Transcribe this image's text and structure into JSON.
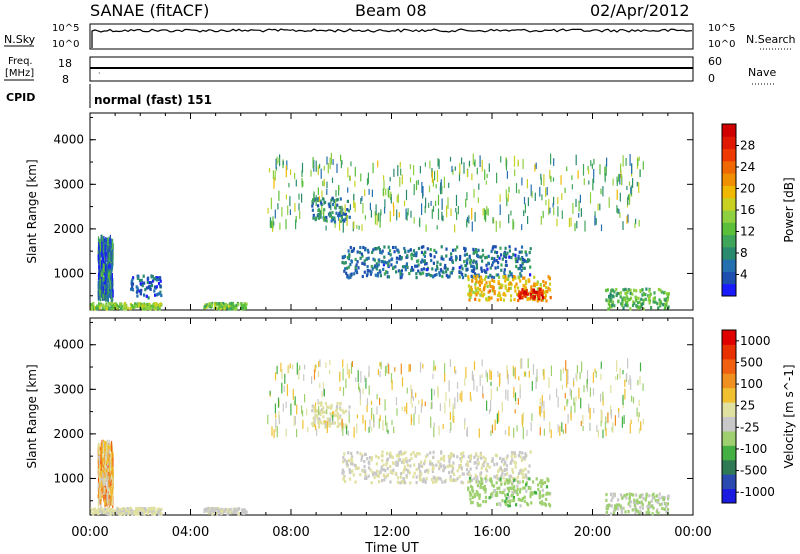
{
  "header": {
    "station": "SANAE (fitACF)",
    "beam": "Beam 08",
    "date": "02/Apr/2012"
  },
  "status_panels": {
    "nsky_label": "N.Sky",
    "nsearch_label": "N.Search",
    "nsky_ticks": [
      "10^5",
      "10^0"
    ],
    "nsearch_ticks": [
      "10^5",
      "10^0"
    ],
    "freq_label_line1": "Freq.",
    "freq_label_line2": "[MHz]",
    "freq_ticks": [
      "18",
      "8"
    ],
    "nave_label": "Nave",
    "nave_ticks": [
      "60",
      "0"
    ],
    "cpid_label": "CPID",
    "cpid_value": "normal (fast) 151"
  },
  "chart_data": [
    {
      "type": "heatmap",
      "name": "power",
      "ylabel": "Slant Range [km]",
      "xlabel": "Time UT",
      "xlim": [
        0,
        24
      ],
      "ylim": [
        180,
        4600
      ],
      "x_ticks": [
        "00:00",
        "04:00",
        "08:00",
        "12:00",
        "16:00",
        "20:00",
        "00:00"
      ],
      "y_ticks": [
        1000,
        2000,
        3000,
        4000
      ],
      "colorbar": {
        "label": "Power [dB]",
        "range": [
          0,
          32
        ],
        "ticks": [
          "4",
          "8",
          "12",
          "16",
          "20",
          "24",
          "28"
        ],
        "colors": [
          "#1a1aff",
          "#1d4fb0",
          "#236fb0",
          "#2a8a6e",
          "#3fa55a",
          "#5bbf3a",
          "#8fd040",
          "#c8d020",
          "#f0b800",
          "#f09000",
          "#f06800",
          "#ee3a00",
          "#e01800",
          "#d00000"
        ]
      },
      "regions": [
        {
          "t0": 0.0,
          "t1": 2.8,
          "r0": 200,
          "r1": 330,
          "level": 14
        },
        {
          "t0": 0.3,
          "t1": 0.9,
          "r0": 450,
          "r1": 1750,
          "level": 6
        },
        {
          "t0": 1.5,
          "t1": 2.8,
          "r0": 450,
          "r1": 950,
          "level": 5
        },
        {
          "t0": 4.5,
          "t1": 6.2,
          "r0": 200,
          "r1": 330,
          "level": 13
        },
        {
          "t0": 8.8,
          "t1": 10.3,
          "r0": 2150,
          "r1": 2700,
          "level": 7
        },
        {
          "t0": 10.0,
          "t1": 17.5,
          "r0": 900,
          "r1": 1600,
          "level": 6
        },
        {
          "t0": 15.0,
          "t1": 18.3,
          "r0": 380,
          "r1": 950,
          "level": 19
        },
        {
          "t0": 17.0,
          "t1": 18.0,
          "r0": 430,
          "r1": 650,
          "level": 28
        },
        {
          "t0": 20.5,
          "t1": 23.0,
          "r0": 200,
          "r1": 650,
          "level": 12
        },
        {
          "t0": 7.0,
          "t1": 22.0,
          "r0": 2000,
          "r1": 3600,
          "level": 12
        }
      ]
    },
    {
      "type": "heatmap",
      "name": "velocity",
      "ylabel": "Slant Range [km]",
      "xlabel": "Time UT",
      "xlim": [
        0,
        24
      ],
      "ylim": [
        180,
        4600
      ],
      "x_ticks": [
        "00:00",
        "04:00",
        "08:00",
        "12:00",
        "16:00",
        "20:00",
        "00:00"
      ],
      "y_ticks": [
        1000,
        2000,
        3000,
        4000
      ],
      "colorbar": {
        "label": "Velocity [m s^-1]",
        "range": [
          -1200,
          1200
        ],
        "ticks": [
          "1000",
          "500",
          "100",
          "25",
          "-25",
          "-100",
          "-500",
          "-1000"
        ],
        "colors": [
          "#1a1ae0",
          "#2a4ab0",
          "#2f7a55",
          "#44b044",
          "#9ed070",
          "#c8c8c8",
          "#e0e0a0",
          "#f0c030",
          "#f09020",
          "#f06010",
          "#e83000",
          "#e00000"
        ]
      },
      "regions": [
        {
          "t0": 0.0,
          "t1": 2.8,
          "r0": 200,
          "r1": 330,
          "level": 50
        },
        {
          "t0": 0.3,
          "t1": 0.9,
          "r0": 450,
          "r1": 1750,
          "level": 300
        },
        {
          "t0": 4.5,
          "t1": 6.2,
          "r0": 200,
          "r1": 330,
          "level": -60
        },
        {
          "t0": 8.8,
          "t1": 10.3,
          "r0": 2150,
          "r1": 2700,
          "level": 80
        },
        {
          "t0": 10.0,
          "t1": 17.5,
          "r0": 900,
          "r1": 1600,
          "level": 0
        },
        {
          "t0": 15.0,
          "t1": 18.3,
          "r0": 380,
          "r1": 1000,
          "level": -300
        },
        {
          "t0": 20.5,
          "t1": 23.0,
          "r0": 200,
          "r1": 650,
          "level": -200
        },
        {
          "t0": 7.0,
          "t1": 22.0,
          "r0": 2000,
          "r1": 3600,
          "level": 0
        }
      ]
    }
  ]
}
